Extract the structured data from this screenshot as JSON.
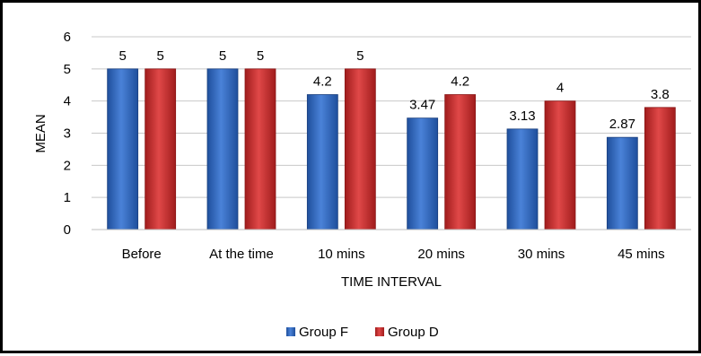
{
  "chart_data": {
    "type": "bar",
    "categories": [
      "Before",
      "At the time",
      "10 mins",
      "20 mins",
      "30 mins",
      "45 mins"
    ],
    "series": [
      {
        "name": "Group F",
        "values": [
          5,
          5,
          4.2,
          3.47,
          3.13,
          2.87
        ],
        "labels": [
          "5",
          "5",
          "4.2",
          "3.47",
          "3.13",
          "2.87"
        ],
        "color": "#2e63b8"
      },
      {
        "name": "Group D",
        "values": [
          5,
          5,
          5,
          4.2,
          4,
          3.8
        ],
        "labels": [
          "5",
          "5",
          "5",
          "4.2",
          "4",
          "3.8"
        ],
        "color": "#c83232"
      }
    ],
    "xlabel": "TIME INTERVAL",
    "ylabel": "MEAN",
    "ylim": [
      0,
      6
    ],
    "yticks": [
      "0",
      "1",
      "2",
      "3",
      "4",
      "5",
      "6"
    ],
    "grid": true,
    "legend_position": "bottom"
  }
}
